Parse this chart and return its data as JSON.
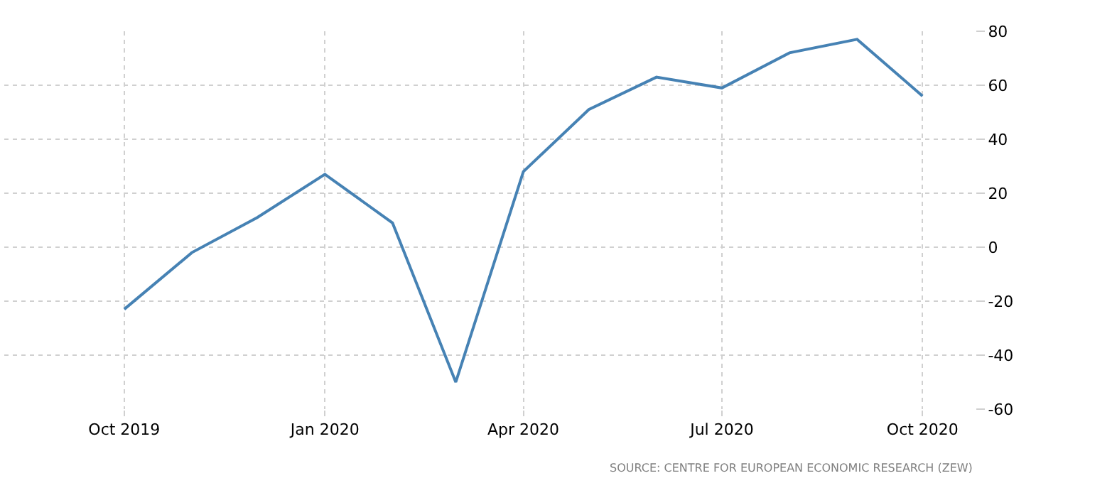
{
  "chart_data": {
    "type": "line",
    "x": [
      "2019-10",
      "2019-11",
      "2019-12",
      "2020-01",
      "2020-02",
      "2020-03",
      "2020-04",
      "2020-05",
      "2020-06",
      "2020-07",
      "2020-08",
      "2020-09",
      "2020-10"
    ],
    "series": [
      {
        "color": "#4682b4",
        "values": [
          -23,
          -2,
          11,
          27,
          9,
          -50,
          28,
          51,
          63,
          59,
          72,
          77,
          56
        ]
      }
    ],
    "xlim": [
      "2019-08-07",
      "2020-10-25"
    ],
    "xticks": [
      {
        "value": "2019-10",
        "label": "Oct 2019"
      },
      {
        "value": "2020-01",
        "label": "Jan 2020"
      },
      {
        "value": "2020-04",
        "label": "Apr 2020"
      },
      {
        "value": "2020-07",
        "label": "Jul 2020"
      },
      {
        "value": "2020-10",
        "label": "Oct 2020"
      }
    ],
    "ylim": [
      -60,
      80
    ],
    "yticks": [
      -60,
      -40,
      -20,
      0,
      20,
      40,
      60,
      80
    ],
    "grid": true,
    "marker": "none",
    "line_style": "solid",
    "annotations": [
      "SOURCE: CENTRE FOR EUROPEAN ECONOMIC RESEARCH (ZEW)"
    ]
  }
}
